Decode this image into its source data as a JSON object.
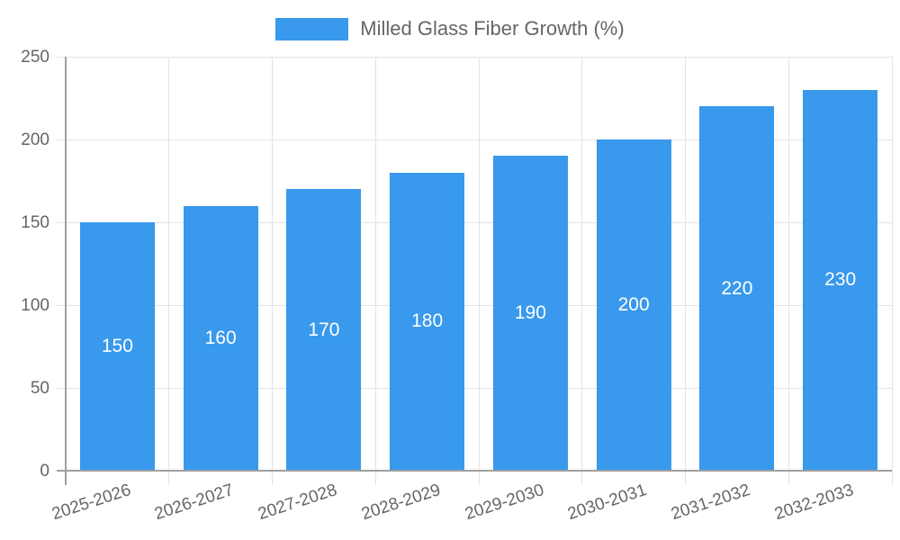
{
  "chart_data": {
    "type": "bar",
    "title": "Milled Glass Fiber Growth (%)",
    "categories": [
      "2025-2026",
      "2026-2027",
      "2027-2028",
      "2028-2029",
      "2029-2030",
      "2030-2031",
      "2031-2032",
      "2032-2033"
    ],
    "series": [
      {
        "name": "Milled Glass Fiber Growth (%)",
        "values": [
          150,
          160,
          170,
          180,
          190,
          200,
          220,
          230
        ]
      }
    ],
    "data_labels_shown": true,
    "xlabel": "",
    "ylabel": "",
    "ylim": [
      0,
      250
    ],
    "yticks": [
      0,
      50,
      100,
      150,
      200,
      250
    ],
    "grid": true,
    "legend_position": "top",
    "x_tick_rotation_deg": -18,
    "colors": {
      "bar": "#3999EC",
      "bar_label": "#FFFFFF",
      "tick_text": "#666666",
      "grid": "#E3E3E3",
      "axis": "#A0A0A0"
    }
  }
}
